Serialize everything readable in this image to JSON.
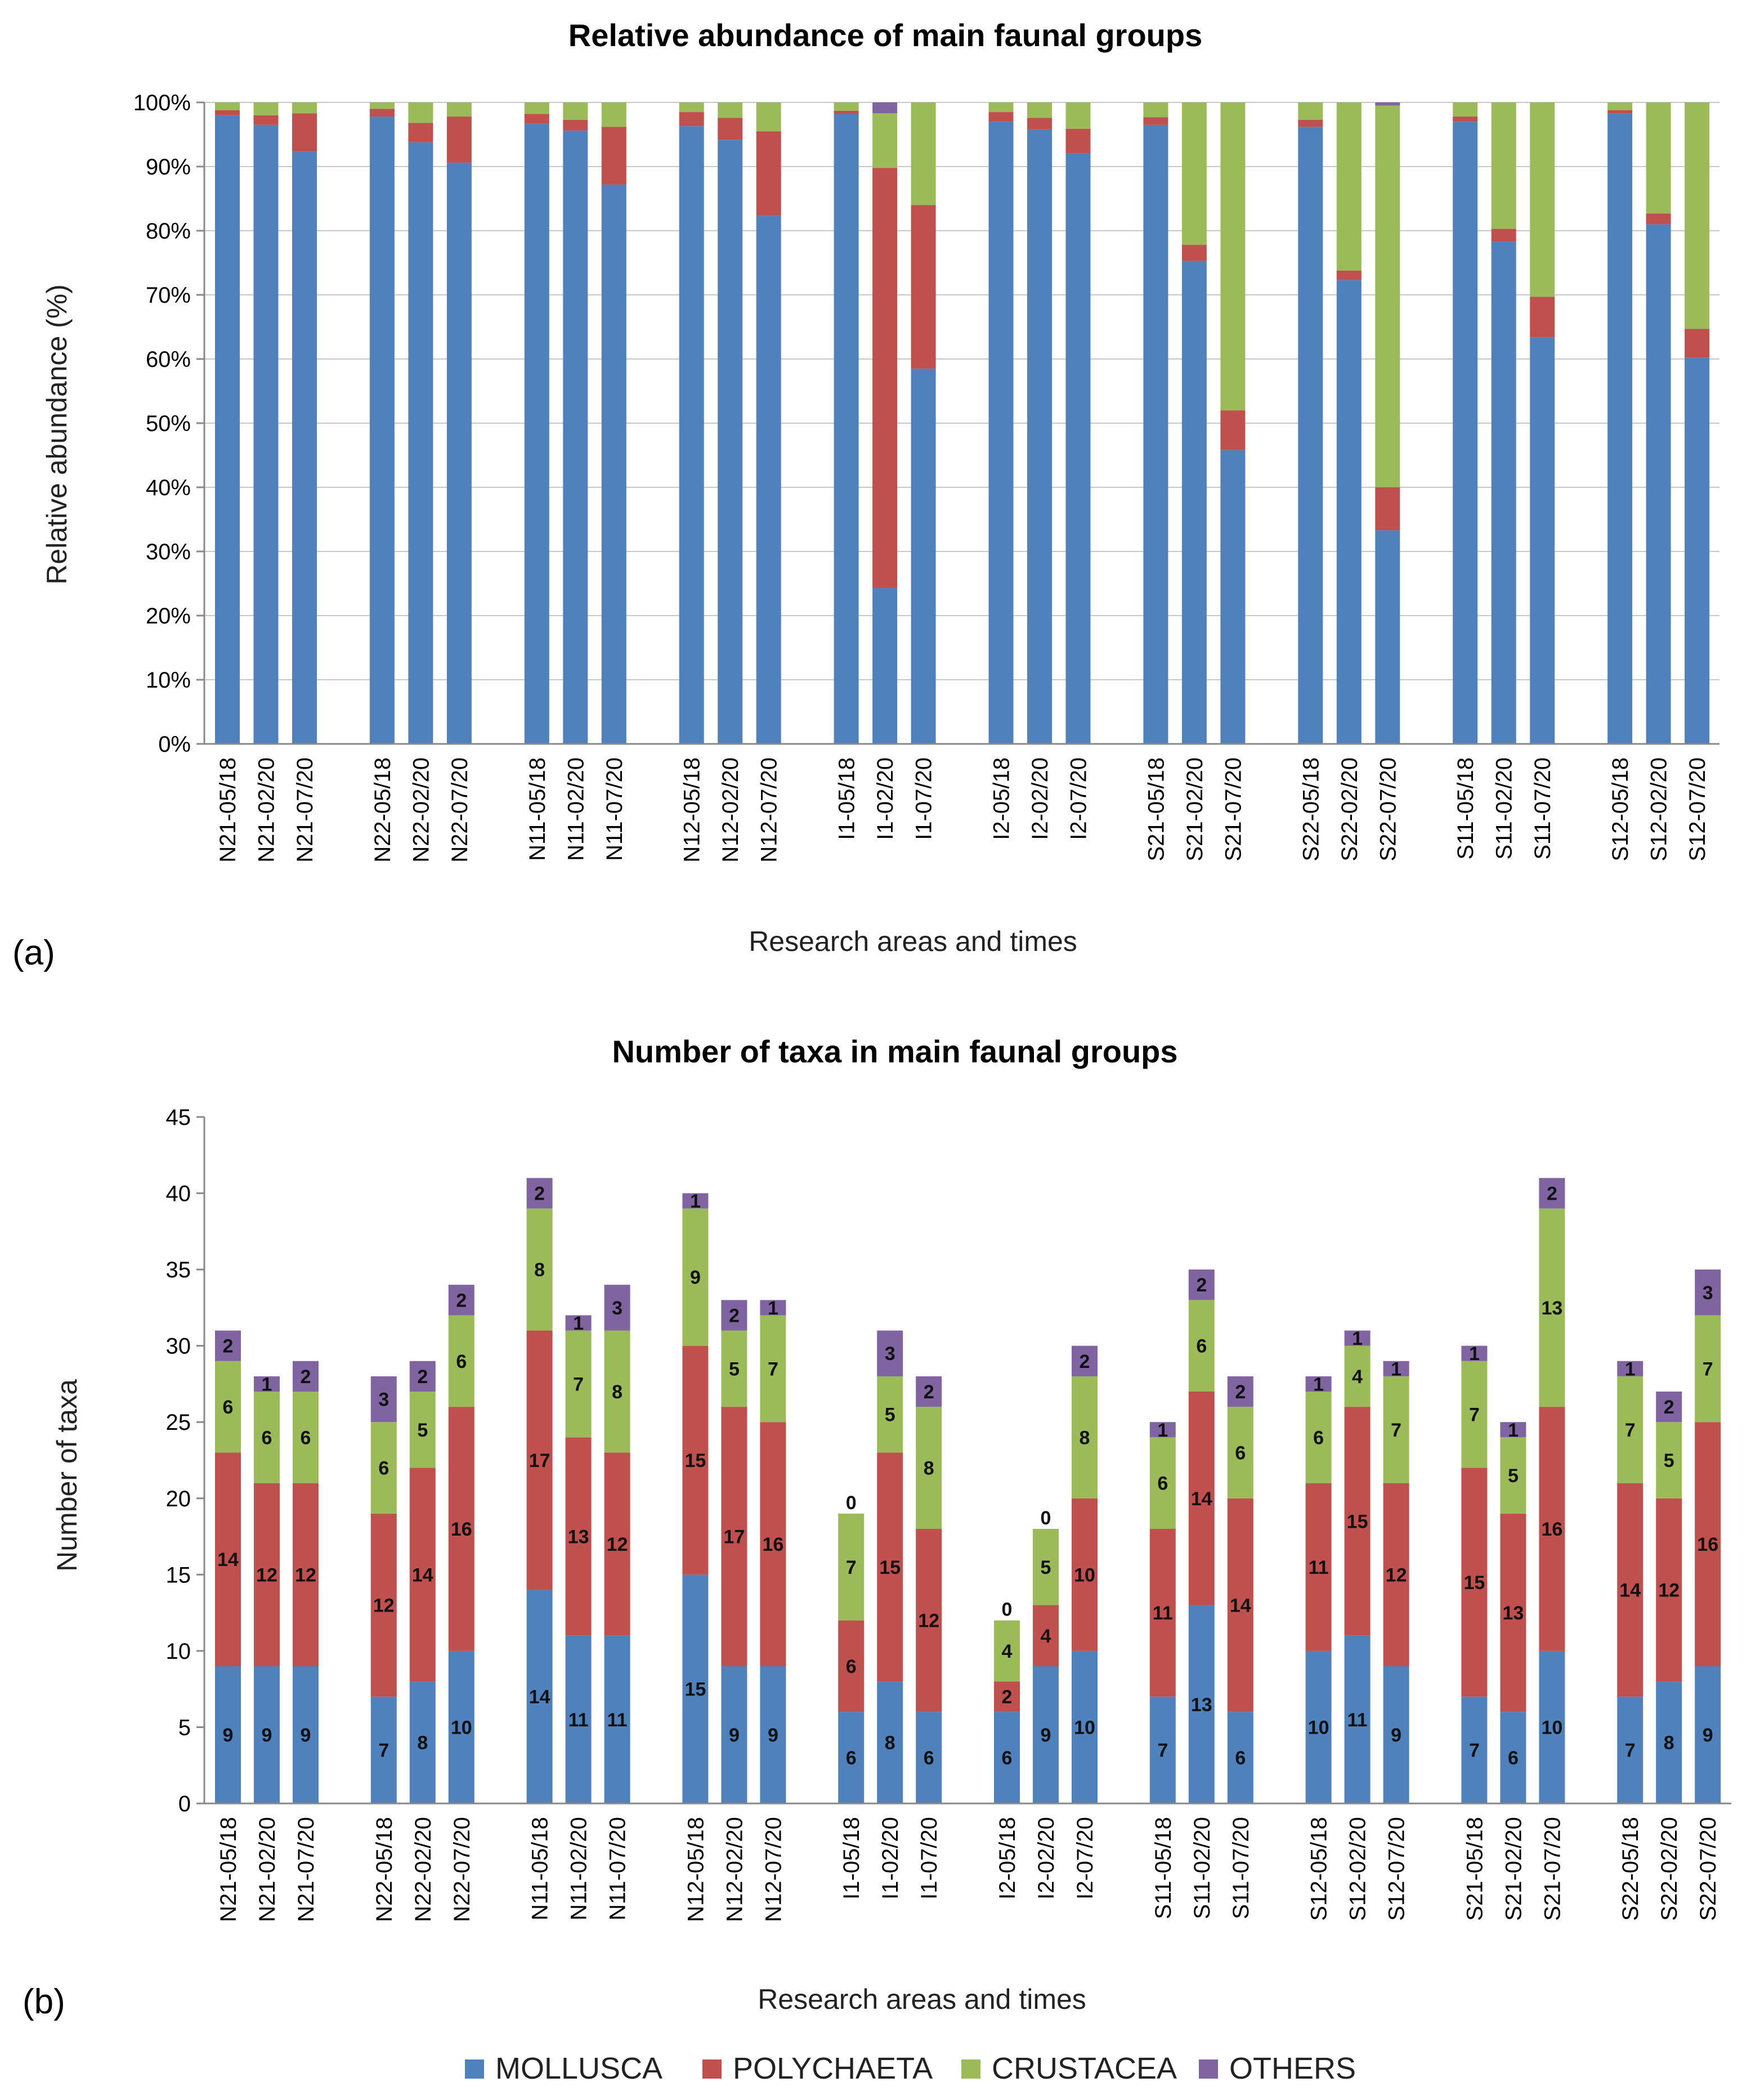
{
  "colors": {
    "mollusca": "#4F81BD",
    "polychaeta": "#C0504D",
    "crustacea": "#9BBB59",
    "others": "#8064A2"
  },
  "legend": {
    "items": [
      {
        "key": "mollusca",
        "label": "MOLLUSCA"
      },
      {
        "key": "polychaeta",
        "label": "POLYCHAETA"
      },
      {
        "key": "crustacea",
        "label": "CRUSTACEA"
      },
      {
        "key": "others",
        "label": "OTHERS"
      }
    ]
  },
  "chart_data": [
    {
      "type": "bar",
      "stacked": true,
      "panel_label": "(a)",
      "title": "Relative abundance of main faunal groups",
      "xlabel": "Research areas and times",
      "ylabel": "Relative abundance (%)",
      "ylim": [
        0,
        100
      ],
      "yticks": [
        "0%",
        "10%",
        "20%",
        "30%",
        "40%",
        "50%",
        "60%",
        "70%",
        "80%",
        "90%",
        "100%"
      ],
      "groups": [
        [
          "N21-05/18",
          "N21-02/20",
          "N21-07/20"
        ],
        [
          "N22-05/18",
          "N22-02/20",
          "N22-07/20"
        ],
        [
          "N11-05/18",
          "N11-02/20",
          "N11-07/20"
        ],
        [
          "N12-05/18",
          "N12-02/20",
          "N12-07/20"
        ],
        [
          "I1-05/18",
          "I1-02/20",
          "I1-07/20"
        ],
        [
          "I2-05/18",
          "I2-02/20",
          "I2-07/20"
        ],
        [
          "S21-05/18",
          "S21-02/20",
          "S21-07/20"
        ],
        [
          "S22-05/18",
          "S22-02/20",
          "S22-07/20"
        ],
        [
          "S11-05/18",
          "S11-02/20",
          "S11-07/20"
        ],
        [
          "S12-05/18",
          "S12-02/20",
          "S12-07/20"
        ]
      ],
      "series": [
        {
          "name": "MOLLUSCA",
          "values": [
            98,
            96.5,
            92.3,
            97.8,
            93.8,
            90.6,
            96.7,
            95.6,
            87.2,
            96.3,
            94.2,
            82.3,
            98.2,
            24.3,
            58.5,
            97,
            95.8,
            92.1,
            96.5,
            75.3,
            45.8,
            96.2,
            72.3,
            33.3,
            97,
            78.3,
            63.4,
            98.3,
            81,
            60.2
          ]
        },
        {
          "name": "POLYCHAETA",
          "values": [
            0.8,
            1.5,
            6,
            1.2,
            3,
            7.2,
            1.5,
            1.7,
            9,
            2.2,
            3.4,
            13.2,
            0.5,
            65.5,
            25.5,
            1.5,
            1.8,
            3.8,
            1.2,
            2.5,
            6.2,
            1.1,
            1.5,
            6.7,
            0.8,
            2,
            6.3,
            0.5,
            1.7,
            4.5
          ]
        },
        {
          "name": "CRUSTACEA",
          "values": [
            1.2,
            2,
            1.7,
            1,
            3.2,
            2.2,
            1.8,
            2.7,
            3.8,
            1.5,
            2.4,
            4.5,
            1.3,
            8.5,
            16,
            1.5,
            2.4,
            4.1,
            2.3,
            22.2,
            48,
            2.7,
            26.2,
            59.5,
            2.2,
            19.7,
            30.3,
            1.2,
            17.3,
            35.3
          ]
        },
        {
          "name": "OTHERS",
          "values": [
            0,
            0,
            0,
            0,
            0,
            0,
            0,
            0,
            0,
            0,
            0,
            0,
            0,
            1.7,
            0,
            0,
            0,
            0,
            0,
            0,
            0,
            0,
            0,
            0.5,
            0,
            0,
            0,
            0,
            0,
            0
          ]
        }
      ]
    },
    {
      "type": "bar",
      "stacked": true,
      "panel_label": "(b)",
      "title": "Number of taxa in main faunal groups",
      "xlabel": "Research areas and times",
      "ylabel": "Number of taxa",
      "ylim": [
        0,
        45
      ],
      "yticks": [
        "0",
        "5",
        "10",
        "15",
        "20",
        "25",
        "30",
        "35",
        "40",
        "45"
      ],
      "groups": [
        [
          "N21-05/18",
          "N21-02/20",
          "N21-07/20"
        ],
        [
          "N22-05/18",
          "N22-02/20",
          "N22-07/20"
        ],
        [
          "N11-05/18",
          "N11-02/20",
          "N11-07/20"
        ],
        [
          "N12-05/18",
          "N12-02/20",
          "N12-07/20"
        ],
        [
          "I1-05/18",
          "I1-02/20",
          "I1-07/20"
        ],
        [
          "I2-05/18",
          "I2-02/20",
          "I2-07/20"
        ],
        [
          "S11-05/18",
          "S11-02/20",
          "S11-07/20"
        ],
        [
          "S12-05/18",
          "S12-02/20",
          "S12-07/20"
        ],
        [
          "S21-05/18",
          "S21-02/20",
          "S21-07/20"
        ],
        [
          "S22-05/18",
          "S22-02/20",
          "S22-07/20"
        ]
      ],
      "series": [
        {
          "name": "MOLLUSCA",
          "values": [
            9,
            9,
            9,
            7,
            8,
            10,
            14,
            11,
            11,
            15,
            9,
            9,
            6,
            8,
            6,
            6,
            9,
            10,
            7,
            13,
            6,
            10,
            11,
            9,
            7,
            6,
            10,
            7,
            8,
            9
          ]
        },
        {
          "name": "POLYCHAETA",
          "values": [
            14,
            12,
            12,
            12,
            14,
            16,
            17,
            13,
            12,
            15,
            17,
            16,
            6,
            15,
            12,
            2,
            4,
            10,
            11,
            14,
            14,
            11,
            15,
            12,
            15,
            13,
            16,
            14,
            12,
            16
          ]
        },
        {
          "name": "CRUSTACEA",
          "values": [
            6,
            6,
            6,
            6,
            5,
            6,
            8,
            7,
            8,
            9,
            5,
            7,
            7,
            5,
            8,
            4,
            5,
            8,
            6,
            6,
            6,
            6,
            4,
            7,
            7,
            5,
            13,
            7,
            5,
            7
          ]
        },
        {
          "name": "OTHERS",
          "values": [
            2,
            1,
            2,
            3,
            2,
            2,
            2,
            1,
            3,
            1,
            2,
            1,
            0,
            3,
            2,
            0,
            0,
            2,
            1,
            2,
            2,
            1,
            1,
            1,
            1,
            1,
            2,
            1,
            2,
            3
          ]
        }
      ]
    }
  ]
}
